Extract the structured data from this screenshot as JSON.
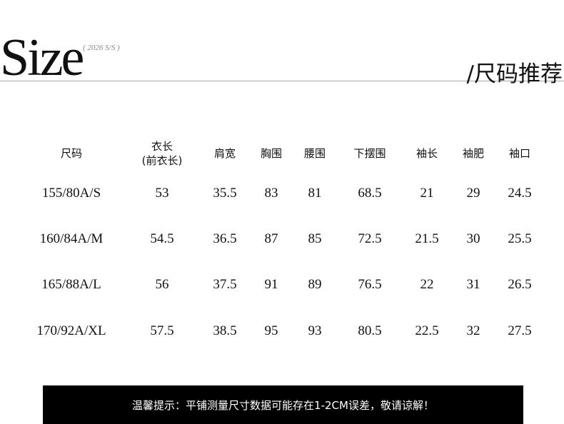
{
  "header": {
    "logo": "Size",
    "season": "( 2026 S/S )",
    "title": "/尺码推荐"
  },
  "table": {
    "columns": [
      "尺码",
      "衣长\n(前衣长)",
      "肩宽",
      "胸围",
      "腰围",
      "下摆围",
      "袖长",
      "袖肥",
      "袖口"
    ],
    "rows": [
      [
        "155/80A/S",
        "53",
        "35.5",
        "83",
        "81",
        "68.5",
        "21",
        "29",
        "24.5"
      ],
      [
        "160/84A/M",
        "54.5",
        "36.5",
        "87",
        "85",
        "72.5",
        "21.5",
        "30",
        "25.5"
      ],
      [
        "165/88A/L",
        "56",
        "37.5",
        "91",
        "89",
        "76.5",
        "22",
        "31",
        "26.5"
      ],
      [
        "170/92A/XL",
        "57.5",
        "38.5",
        "95",
        "93",
        "80.5",
        "22.5",
        "32",
        "27.5"
      ]
    ]
  },
  "note": "温馨提示：平铺测量尺寸数据可能存在1-2CM误差，敬请谅解！"
}
